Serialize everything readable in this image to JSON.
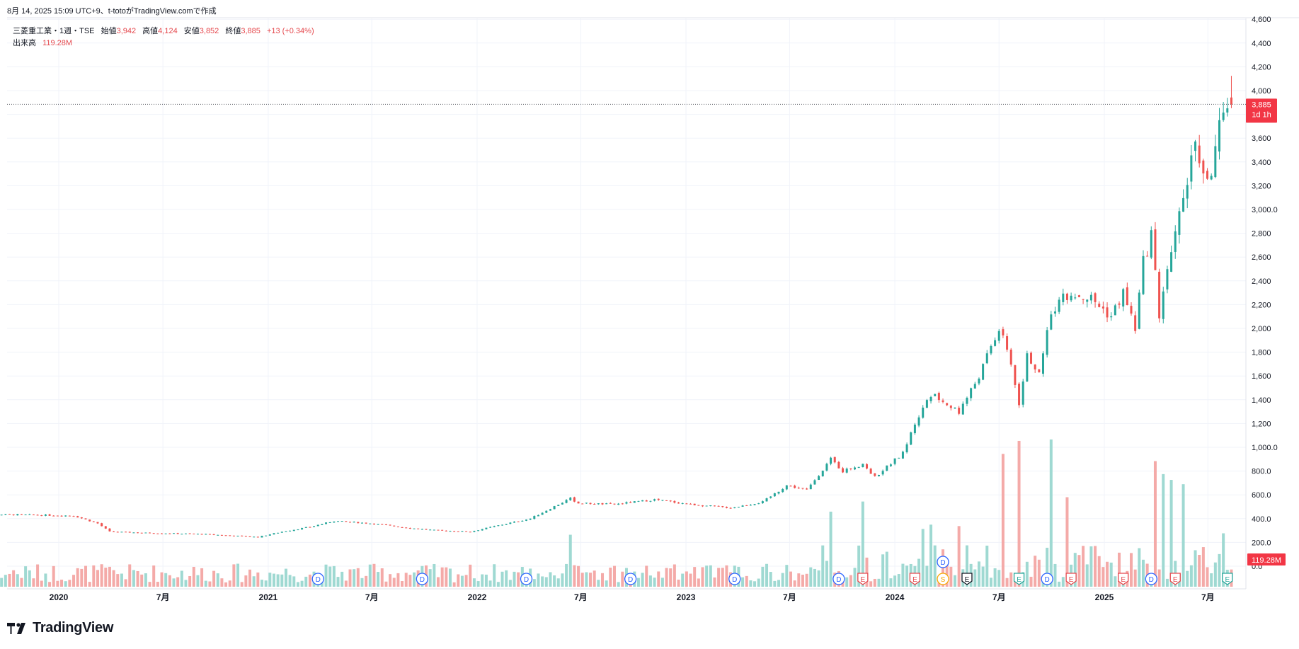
{
  "header": {
    "created_line": "8月 14, 2025 15:09 UTC+9、t-totoがTradingView.comで作成"
  },
  "legend": {
    "symbol": "三菱重工業・1週・TSE",
    "open_label": "始値",
    "open": "3,942",
    "high_label": "高値",
    "high": "4,124",
    "low_label": "安値",
    "low": "3,852",
    "close_label": "終値",
    "close": "3,885",
    "change": "+13 (+0.34%)",
    "volume_label": "出来高",
    "volume": "119.28M"
  },
  "price_tag": {
    "price": "3,885",
    "countdown": "1d 1h"
  },
  "volume_tag": "119.28M",
  "brand": "TradingView",
  "colors": {
    "up": "#26a69a",
    "down": "#ef5350",
    "volume_up": "#9fd9d2",
    "volume_down": "#f4aaa8",
    "tag_bg": "#f23645"
  },
  "chart_data": {
    "type": "candlestick",
    "interval": "1 week",
    "price_axis": {
      "min": 0,
      "max": 4600,
      "ticks": [
        "0.0",
        "200.0",
        "400.0",
        "600.0",
        "800.0",
        "1,000.0",
        "1,200",
        "1,400",
        "1,600",
        "1,800",
        "2,000",
        "2,200",
        "2,400",
        "2,600",
        "2,800",
        "3,000.0",
        "3,200",
        "3,400",
        "3,600",
        "3,800",
        "4,000",
        "4,200",
        "4,400",
        "4,600"
      ]
    },
    "time_axis": {
      "labels": [
        "2020",
        "7月",
        "2021",
        "7月",
        "2022",
        "7月",
        "2023",
        "7月",
        "2024",
        "7月",
        "2025",
        "7月"
      ],
      "dates": [
        "2020-01-01",
        "2020-07-01",
        "2021-01-01",
        "2021-07-01",
        "2022-01-01",
        "2022-07-01",
        "2023-01-01",
        "2023-07-01",
        "2024-01-01",
        "2024-07-01",
        "2025-01-01",
        "2025-07-01"
      ]
    },
    "last_close": 3885,
    "close_anchors": [
      [
        "2019-07-29",
        440
      ],
      [
        "2019-11-25",
        430
      ],
      [
        "2020-01-27",
        425
      ],
      [
        "2020-03-09",
        360
      ],
      [
        "2020-03-30",
        290
      ],
      [
        "2020-06-01",
        280
      ],
      [
        "2020-09-07",
        270
      ],
      [
        "2020-12-14",
        245
      ],
      [
        "2021-01-25",
        290
      ],
      [
        "2021-03-15",
        330
      ],
      [
        "2021-04-26",
        380
      ],
      [
        "2021-06-28",
        360
      ],
      [
        "2021-09-06",
        320
      ],
      [
        "2021-10-25",
        300
      ],
      [
        "2021-12-20",
        290
      ],
      [
        "2022-02-14",
        350
      ],
      [
        "2022-04-04",
        400
      ],
      [
        "2022-05-23",
        520
      ],
      [
        "2022-06-13",
        570
      ],
      [
        "2022-06-27",
        530
      ],
      [
        "2022-08-29",
        520
      ],
      [
        "2022-11-07",
        560
      ],
      [
        "2023-01-09",
        520
      ],
      [
        "2023-03-20",
        490
      ],
      [
        "2023-05-15",
        540
      ],
      [
        "2023-06-26",
        680
      ],
      [
        "2023-07-31",
        640
      ],
      [
        "2023-09-11",
        900
      ],
      [
        "2023-10-02",
        800
      ],
      [
        "2023-11-06",
        860
      ],
      [
        "2023-11-27",
        750
      ],
      [
        "2024-01-15",
        950
      ],
      [
        "2024-02-05",
        1200
      ],
      [
        "2024-03-04",
        1450
      ],
      [
        "2024-04-22",
        1300
      ],
      [
        "2024-05-27",
        1600
      ],
      [
        "2024-07-01",
        2000
      ],
      [
        "2024-07-22",
        1700
      ],
      [
        "2024-08-05",
        1350
      ],
      [
        "2024-08-19",
        1800
      ],
      [
        "2024-09-09",
        1600
      ],
      [
        "2024-09-30",
        2150
      ],
      [
        "2024-11-04",
        2300
      ],
      [
        "2024-12-09",
        2250
      ],
      [
        "2025-01-13",
        2100
      ],
      [
        "2025-02-03",
        2300
      ],
      [
        "2025-02-24",
        2000
      ],
      [
        "2025-03-10",
        2550
      ],
      [
        "2025-03-24",
        2800
      ],
      [
        "2025-04-07",
        2100
      ],
      [
        "2025-04-28",
        2700
      ],
      [
        "2025-05-26",
        3250
      ],
      [
        "2025-06-09",
        3550
      ],
      [
        "2025-06-30",
        3200
      ],
      [
        "2025-07-21",
        3650
      ],
      [
        "2025-08-04",
        3750
      ],
      [
        "2025-08-11",
        3885
      ]
    ],
    "volume_axis": {
      "min": 0,
      "max": 1100,
      "unit": "M"
    },
    "volume_spikes": [
      [
        "2022-06-13",
        360
      ],
      [
        "2023-09-11",
        520
      ],
      [
        "2023-11-06",
        590
      ],
      [
        "2024-02-19",
        400
      ],
      [
        "2024-03-04",
        430
      ],
      [
        "2024-04-22",
        420
      ],
      [
        "2024-07-08",
        920
      ],
      [
        "2024-08-05",
        1010
      ],
      [
        "2024-09-30",
        1020
      ],
      [
        "2024-10-28",
        620
      ],
      [
        "2025-03-31",
        870
      ],
      [
        "2025-04-14",
        780
      ],
      [
        "2025-04-28",
        740
      ],
      [
        "2025-05-19",
        710
      ],
      [
        "2025-07-28",
        370
      ]
    ],
    "event_markers": [
      [
        "2021-03-29",
        "D",
        "dividend"
      ],
      [
        "2021-09-27",
        "D",
        "dividend"
      ],
      [
        "2022-03-28",
        "D",
        "dividend"
      ],
      [
        "2022-09-26",
        "D",
        "dividend"
      ],
      [
        "2023-03-27",
        "D",
        "dividend"
      ],
      [
        "2023-09-25",
        "D",
        "dividend"
      ],
      [
        "2023-11-06",
        "E",
        "earnings"
      ],
      [
        "2024-02-05",
        "E",
        "earnings"
      ],
      [
        "2024-03-25",
        "D",
        "dividend"
      ],
      [
        "2024-03-25",
        "S",
        "split"
      ],
      [
        "2024-05-06",
        "E",
        "earnings"
      ],
      [
        "2024-08-05",
        "E",
        "earnings"
      ],
      [
        "2024-09-23",
        "D",
        "dividend"
      ],
      [
        "2024-11-04",
        "E",
        "earnings"
      ],
      [
        "2025-02-03",
        "E",
        "earnings"
      ],
      [
        "2025-03-24",
        "D",
        "dividend"
      ],
      [
        "2025-05-05",
        "E",
        "earnings"
      ],
      [
        "2025-08-04",
        "E",
        "earnings"
      ]
    ]
  }
}
